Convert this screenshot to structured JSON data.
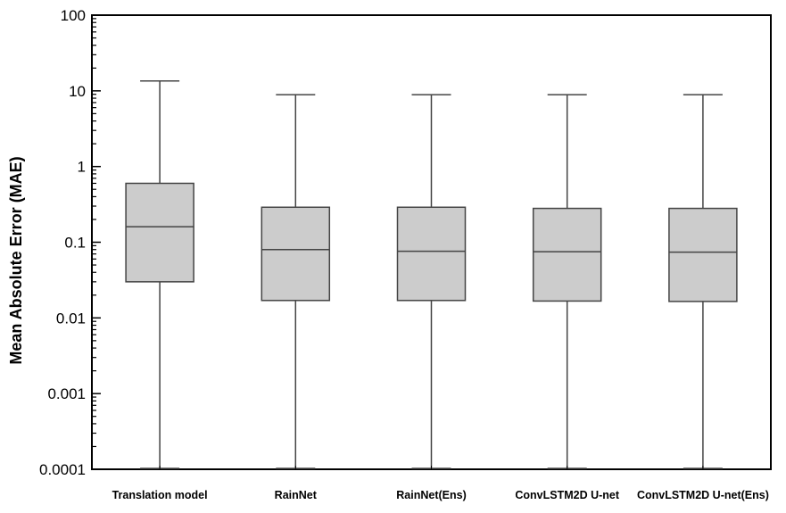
{
  "chart_data": {
    "type": "boxplot",
    "title": "",
    "xlabel": "",
    "ylabel": "Mean Absolute Error (MAE)",
    "yscale": "log",
    "ylim": [
      0.0001,
      100
    ],
    "y_tick_labels": [
      "0.0001",
      "0.001",
      "0.01",
      "0.1",
      "1",
      "10",
      "100"
    ],
    "grid": false,
    "box_color": "#cccccc",
    "line_color": "#444444",
    "categories": [
      "Translation model",
      "RainNet",
      "RainNet(Ens)",
      "ConvLSTM2D U-net",
      "ConvLSTM2D U-net(Ens)"
    ],
    "boxes": [
      {
        "category": "Translation model",
        "whisker_low": 0.0001,
        "q1": 0.03,
        "median": 0.16,
        "q3": 0.6,
        "whisker_high": 13.5
      },
      {
        "category": "RainNet",
        "whisker_low": 0.0001,
        "q1": 0.017,
        "median": 0.08,
        "q3": 0.29,
        "whisker_high": 8.9
      },
      {
        "category": "RainNet(Ens)",
        "whisker_low": 0.0001,
        "q1": 0.017,
        "median": 0.076,
        "q3": 0.29,
        "whisker_high": 8.9
      },
      {
        "category": "ConvLSTM2D U-net",
        "whisker_low": 0.0001,
        "q1": 0.0167,
        "median": 0.075,
        "q3": 0.28,
        "whisker_high": 8.9
      },
      {
        "category": "ConvLSTM2D U-net(Ens)",
        "whisker_low": 0.0001,
        "q1": 0.0165,
        "median": 0.074,
        "q3": 0.28,
        "whisker_high": 8.9
      }
    ]
  }
}
